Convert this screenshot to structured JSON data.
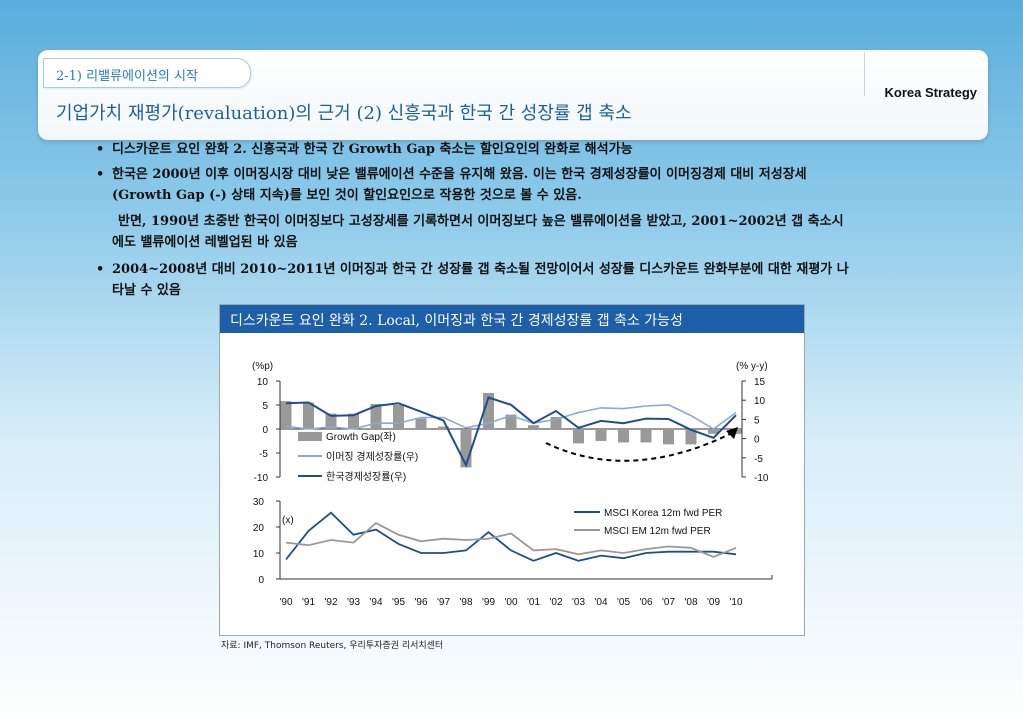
{
  "header": {
    "section": "2-1) 리밸류에이션의 시작",
    "brand": "Korea Strategy",
    "title": "기업가치 재평가(revaluation)의 근거 (2) 신흥국과 한국 간 성장률 갭 축소"
  },
  "bullets": [
    "디스카운트 요인 완화 2. 신흥국과 한국 간 Growth Gap 축소는 할인요인의 완화로 해석가능",
    "한국은 2000년 이후 이머징시장 대비 낮은 밸류에이션 수준을 유지해 왔음. 이는 한국 경제성장률이 이머징경제 대비 저성장세",
    "(Growth Gap (-) 상태 지속)를 보인 것이 할인요인으로 작용한 것으로 볼 수 있음.",
    "반면, 1990년 초중반 한국이 이머징보다 고성장세를 기록하면서 이머징보다 높은 밸류에이션을 받았고, 2001~2002년 갭 축소시",
    "에도 밸류에이션 레벨업된 바 있음",
    "2004~2008년 대비 2010~2011년 이머징과 한국 간 성장률 갭 축소될 전망이어서 성장률 디스카운트 완화부분에 대한 재평가 나",
    "타날 수 있음"
  ],
  "chart_box_title": "디스카운트 요인 완화 2. Local, 이머징과 한국 간 경제성장률 갭 축소 가능성",
  "source": "자료: IMF, Thomson Reuters, 우리투자증권 리서치센터",
  "chart_data": [
    {
      "type": "bar+line",
      "categories": [
        "'90",
        "'91",
        "'92",
        "'93",
        "'94",
        "'95",
        "'96",
        "'97",
        "'98",
        "'99",
        "'00",
        "'01",
        "'02",
        "'03",
        "'04",
        "'05",
        "'06",
        "'07",
        "'08",
        "'09",
        "'10"
      ],
      "left_axis": {
        "label": "(%p)",
        "range": [
          -10,
          10
        ],
        "ticks": [
          10,
          5,
          0,
          -5,
          -10
        ]
      },
      "right_axis": {
        "label": "(% y-y)",
        "range": [
          -10,
          15
        ],
        "ticks": [
          15,
          10,
          5,
          0,
          -5,
          -10
        ]
      },
      "series": [
        {
          "name": "Growth Gap(좌)",
          "axis": "left",
          "kind": "bar",
          "color": "#999999",
          "values": [
            5.8,
            5.5,
            3.2,
            3.2,
            5.2,
            5.0,
            2.2,
            0.5,
            -8.0,
            7.5,
            3.0,
            0.8,
            2.5,
            -3.0,
            -2.5,
            -2.8,
            -2.8,
            -3.2,
            -3.2,
            -1.0,
            -1.0
          ]
        },
        {
          "name": "이머징 경제성장률(우)",
          "axis": "right",
          "kind": "line",
          "color": "#8fa8d0",
          "values": [
            3.2,
            2.5,
            3.0,
            2.5,
            4.0,
            4.0,
            5.5,
            5.5,
            2.8,
            4.0,
            6.0,
            4.0,
            5.0,
            6.8,
            8.0,
            7.8,
            8.5,
            8.8,
            6.0,
            2.5,
            6.8
          ]
        },
        {
          "name": "한국경제성장률(우)",
          "axis": "right",
          "kind": "line",
          "color": "#1d4f8c",
          "values": [
            9.2,
            9.4,
            5.9,
            6.1,
            8.5,
            9.2,
            7.0,
            4.7,
            -6.9,
            10.7,
            8.8,
            4.0,
            7.2,
            2.8,
            4.6,
            4.0,
            5.2,
            5.1,
            2.3,
            0.2,
            6.1
          ]
        }
      ]
    },
    {
      "type": "line",
      "categories": [
        "'90",
        "'91",
        "'92",
        "'93",
        "'94",
        "'95",
        "'96",
        "'97",
        "'98",
        "'99",
        "'00",
        "'01",
        "'02",
        "'03",
        "'04",
        "'05",
        "'06",
        "'07",
        "'08",
        "'09",
        "'10"
      ],
      "y_label": "(x)",
      "ylim": [
        0,
        30
      ],
      "ticks": [
        30,
        20,
        10,
        0
      ],
      "series": [
        {
          "name": "MSCI Korea 12m fwd PER",
          "color": "#1d4f8c",
          "values": [
            7.5,
            18.5,
            25.5,
            17,
            19,
            13.5,
            10,
            10,
            11,
            18,
            11,
            7,
            10,
            7,
            9,
            8,
            10,
            10.5,
            10.5,
            10.5,
            9.5
          ]
        },
        {
          "name": "MSCI EM 12m fwd PER",
          "color": "#999999",
          "values": [
            14,
            13,
            15,
            14,
            21.5,
            17,
            14.5,
            15.5,
            15,
            15.5,
            17.5,
            11,
            11.5,
            9.5,
            11,
            10,
            11.5,
            12.5,
            12,
            8.5,
            12
          ]
        }
      ]
    }
  ]
}
